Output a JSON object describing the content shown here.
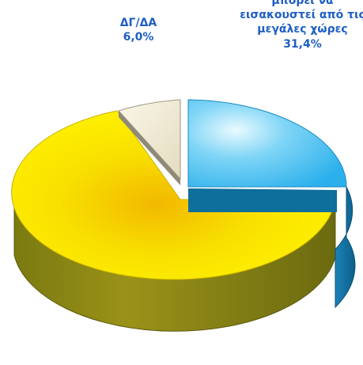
{
  "chart_data": {
    "type": "pie",
    "style": "3d-exploded",
    "slices": [
      {
        "label_lines": [
          "μπορεί να",
          "εισακουστεί από τις",
          "μεγάλες χώρες"
        ],
        "value_text": "31,4%",
        "value": 31.4,
        "color": "#3ab7ee"
      },
      {
        "label_lines": [
          "ΔΓ/ΔΑ"
        ],
        "value_text": "6,0%",
        "value": 6.0,
        "color": "#ede6cf"
      },
      {
        "label_lines": [],
        "value_text": "",
        "value": 62.6,
        "color": "#f5e800"
      }
    ],
    "label_color": "#1f5fc3"
  }
}
